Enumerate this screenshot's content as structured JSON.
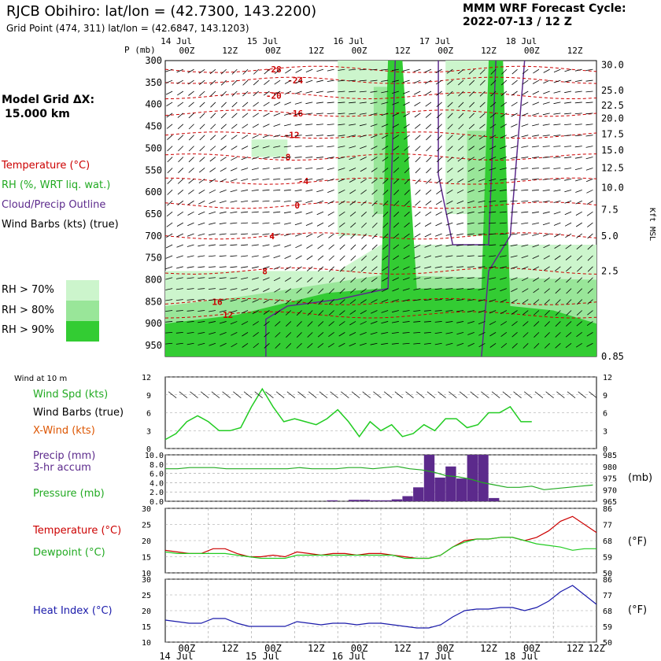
{
  "header": {
    "title": "RJCB Obihiro:  lat/lon = (42.7300, 143.2200)",
    "subtitle": "Grid Point (474, 311) lat/lon = (42.6847, 143.1203)",
    "cycle_line1": "MMM WRF Forecast Cycle:",
    "cycle_line2": "2022-07-13 / 12  Z"
  },
  "left_labels": {
    "model_grid": "Model Grid ΔX:",
    "model_grid_value": "15.000 km",
    "temperature": "Temperature (°C)",
    "rh": "RH (%, WRT liq. wat.)",
    "cloud": "Cloud/Precip Outline",
    "wind_barbs": "Wind Barbs (kts) (true)",
    "rh70": "RH > 70%",
    "rh80": "RH > 80%",
    "rh90": "RH > 90%",
    "wind10": "Wind at 10 m",
    "wind_spd": "Wind Spd (kts)",
    "wind_barbs2": "Wind Barbs (true)",
    "xwind": "X-Wind (kts)",
    "precip1": "Precip (mm)",
    "precip2": "3-hr accum",
    "pressure": "Pressure (mb)",
    "temp2": "Temperature (°C)",
    "dew": "Dewpoint (°C)",
    "heat": "Heat Index (°C)",
    "units_mb": "(mb)",
    "units_f1": "(°F)",
    "units_f2": "(°F)"
  },
  "colors": {
    "rh70": "#ccf5cc",
    "rh80": "#99e699",
    "rh90": "#33cc33",
    "temperature": "#cc0000",
    "cloud": "#5c2a8c",
    "wind_spd": "#22cc22",
    "precip": "#5c2a8c",
    "pressure": "#22aa22",
    "dewpoint": "#22cc22",
    "heat_index": "#1a1aaa",
    "legend_label_red": "#cc0000",
    "legend_label_green": "#22aa22",
    "legend_label_purple": "#5c2a8c",
    "legend_label_orange": "#dd5500",
    "legend_label_blue": "#1a1aaa"
  },
  "chart_data": [
    {
      "type": "heatmap",
      "panel": "sounding",
      "y_axis_title": "P (mb)",
      "right_axis_title": "Kft MSL",
      "x_day_labels": [
        {
          "label": "14 Jul",
          "t": 0
        },
        {
          "label": "15 Jul",
          "t": 24
        },
        {
          "label": "16 Jul",
          "t": 48
        },
        {
          "label": "17 Jul",
          "t": 72
        },
        {
          "label": "18 Jul",
          "t": 96
        }
      ],
      "x_tick_labels": [
        "00Z",
        "12Z",
        "00Z",
        "12Z",
        "00Z",
        "12Z",
        "00Z",
        "12Z",
        "00Z",
        "12Z"
      ],
      "x_tick_hours": [
        0,
        12,
        24,
        36,
        48,
        60,
        72,
        84,
        96,
        108
      ],
      "pressure_ticks": [
        "300",
        "350",
        "400",
        "450",
        "500",
        "550",
        "600",
        "650",
        "700",
        "750",
        "800",
        "850",
        "900",
        "950"
      ],
      "height_ticks": [
        "30.0",
        "25.0",
        "22.5",
        "20.0",
        "17.5",
        "15.0",
        "12.5",
        "10.0",
        "7.5",
        "5.0",
        "2.5",
        "0.85"
      ],
      "temperature_labels": [
        "-28",
        "-24",
        "-20",
        "-16",
        "-12",
        "-8",
        "-4",
        "0",
        "4",
        "8",
        "12",
        "16"
      ]
    },
    {
      "type": "line",
      "panel": "wind",
      "y_ticks": [
        "0",
        "3",
        "6",
        "9",
        "12"
      ],
      "ylim": [
        0,
        12
      ],
      "series": [
        {
          "name": "Wind Spd (kts)",
          "color": "#22cc22",
          "values": [
            1.5,
            2.5,
            4.5,
            5.5,
            4.5,
            3,
            3,
            3.5,
            7,
            10,
            7,
            4.5,
            5,
            4.5,
            4,
            5,
            6.5,
            4.5,
            2,
            4.5,
            3,
            4,
            2,
            2.5,
            4,
            3,
            5,
            5,
            3.5,
            4,
            6,
            6,
            7,
            4.5,
            4.5
          ]
        }
      ],
      "x_hours_step": 3
    },
    {
      "type": "bar",
      "panel": "precip_pressure",
      "precip_ticks": [
        "0.0",
        "2.0",
        "4.0",
        "6.0",
        "8.0",
        "10.0"
      ],
      "pressure_ticks": [
        "965",
        "970",
        "975",
        "980",
        "985"
      ],
      "precip_values": [
        0,
        0,
        0,
        0,
        0,
        0,
        0,
        0,
        0,
        0,
        0,
        0,
        0,
        0,
        0,
        0.2,
        0,
        0.3,
        0.3,
        0.2,
        0.2,
        0.4,
        1.1,
        3.0,
        10.0,
        5.1,
        7.5,
        4.9,
        10.0,
        10.0,
        0.7,
        0,
        0,
        0,
        0,
        0
      ],
      "pressure_values": [
        979,
        979,
        979.5,
        979.5,
        979.5,
        979,
        979,
        979,
        979,
        979,
        979,
        979.5,
        979,
        979,
        979,
        979.5,
        979.5,
        979,
        979.5,
        980,
        979,
        978.5,
        977.5,
        976,
        975.5,
        974.5,
        973,
        972,
        971,
        971,
        971.5,
        970,
        970.5,
        971,
        971.5,
        972
      ]
    },
    {
      "type": "line",
      "panel": "temp_dew",
      "y_ticks": [
        "10",
        "15",
        "20",
        "25",
        "30"
      ],
      "y_ticks_f": [
        "50",
        "59",
        "68",
        "77",
        "86"
      ],
      "ylim": [
        10,
        30
      ],
      "series": [
        {
          "name": "Temperature (°C)",
          "color": "#cc0000",
          "values": [
            17,
            16.5,
            16,
            16,
            17.5,
            17.5,
            16,
            15,
            15,
            15.5,
            15,
            16.5,
            16,
            15.5,
            16,
            16,
            15.5,
            16,
            16,
            15.5,
            15,
            14.5,
            14.5,
            15.5,
            18,
            20,
            20.5,
            20.5,
            21,
            21,
            20,
            21,
            23,
            26,
            27.5,
            25,
            22.5
          ]
        },
        {
          "name": "Dewpoint (°C)",
          "color": "#22cc22",
          "values": [
            16.5,
            16,
            16,
            16,
            16,
            16,
            15.5,
            15,
            14.5,
            14.5,
            14.5,
            15.5,
            15.5,
            15.5,
            15.5,
            15.5,
            15.5,
            15.5,
            15.5,
            15.5,
            14.5,
            14.5,
            14.5,
            15.5,
            18,
            19.5,
            20.5,
            20.5,
            21,
            21,
            20,
            19,
            18.5,
            18,
            17,
            17.5,
            17.5
          ]
        }
      ]
    },
    {
      "type": "line",
      "panel": "heat_index",
      "y_ticks": [
        "10",
        "15",
        "20",
        "25",
        "30"
      ],
      "y_ticks_f": [
        "50",
        "59",
        "68",
        "77",
        "86"
      ],
      "ylim": [
        10,
        30
      ],
      "series": [
        {
          "name": "Heat Index (°C)",
          "color": "#1a1aaa",
          "values": [
            17,
            16.5,
            16,
            16,
            17.5,
            17.5,
            16,
            15,
            15,
            15,
            15,
            16.5,
            16,
            15.5,
            16,
            16,
            15.5,
            16,
            16,
            15.5,
            15,
            14.5,
            14.5,
            15.5,
            18,
            20,
            20.5,
            20.5,
            21,
            21,
            20,
            21,
            23,
            26,
            28,
            25,
            22
          ]
        }
      ]
    }
  ]
}
